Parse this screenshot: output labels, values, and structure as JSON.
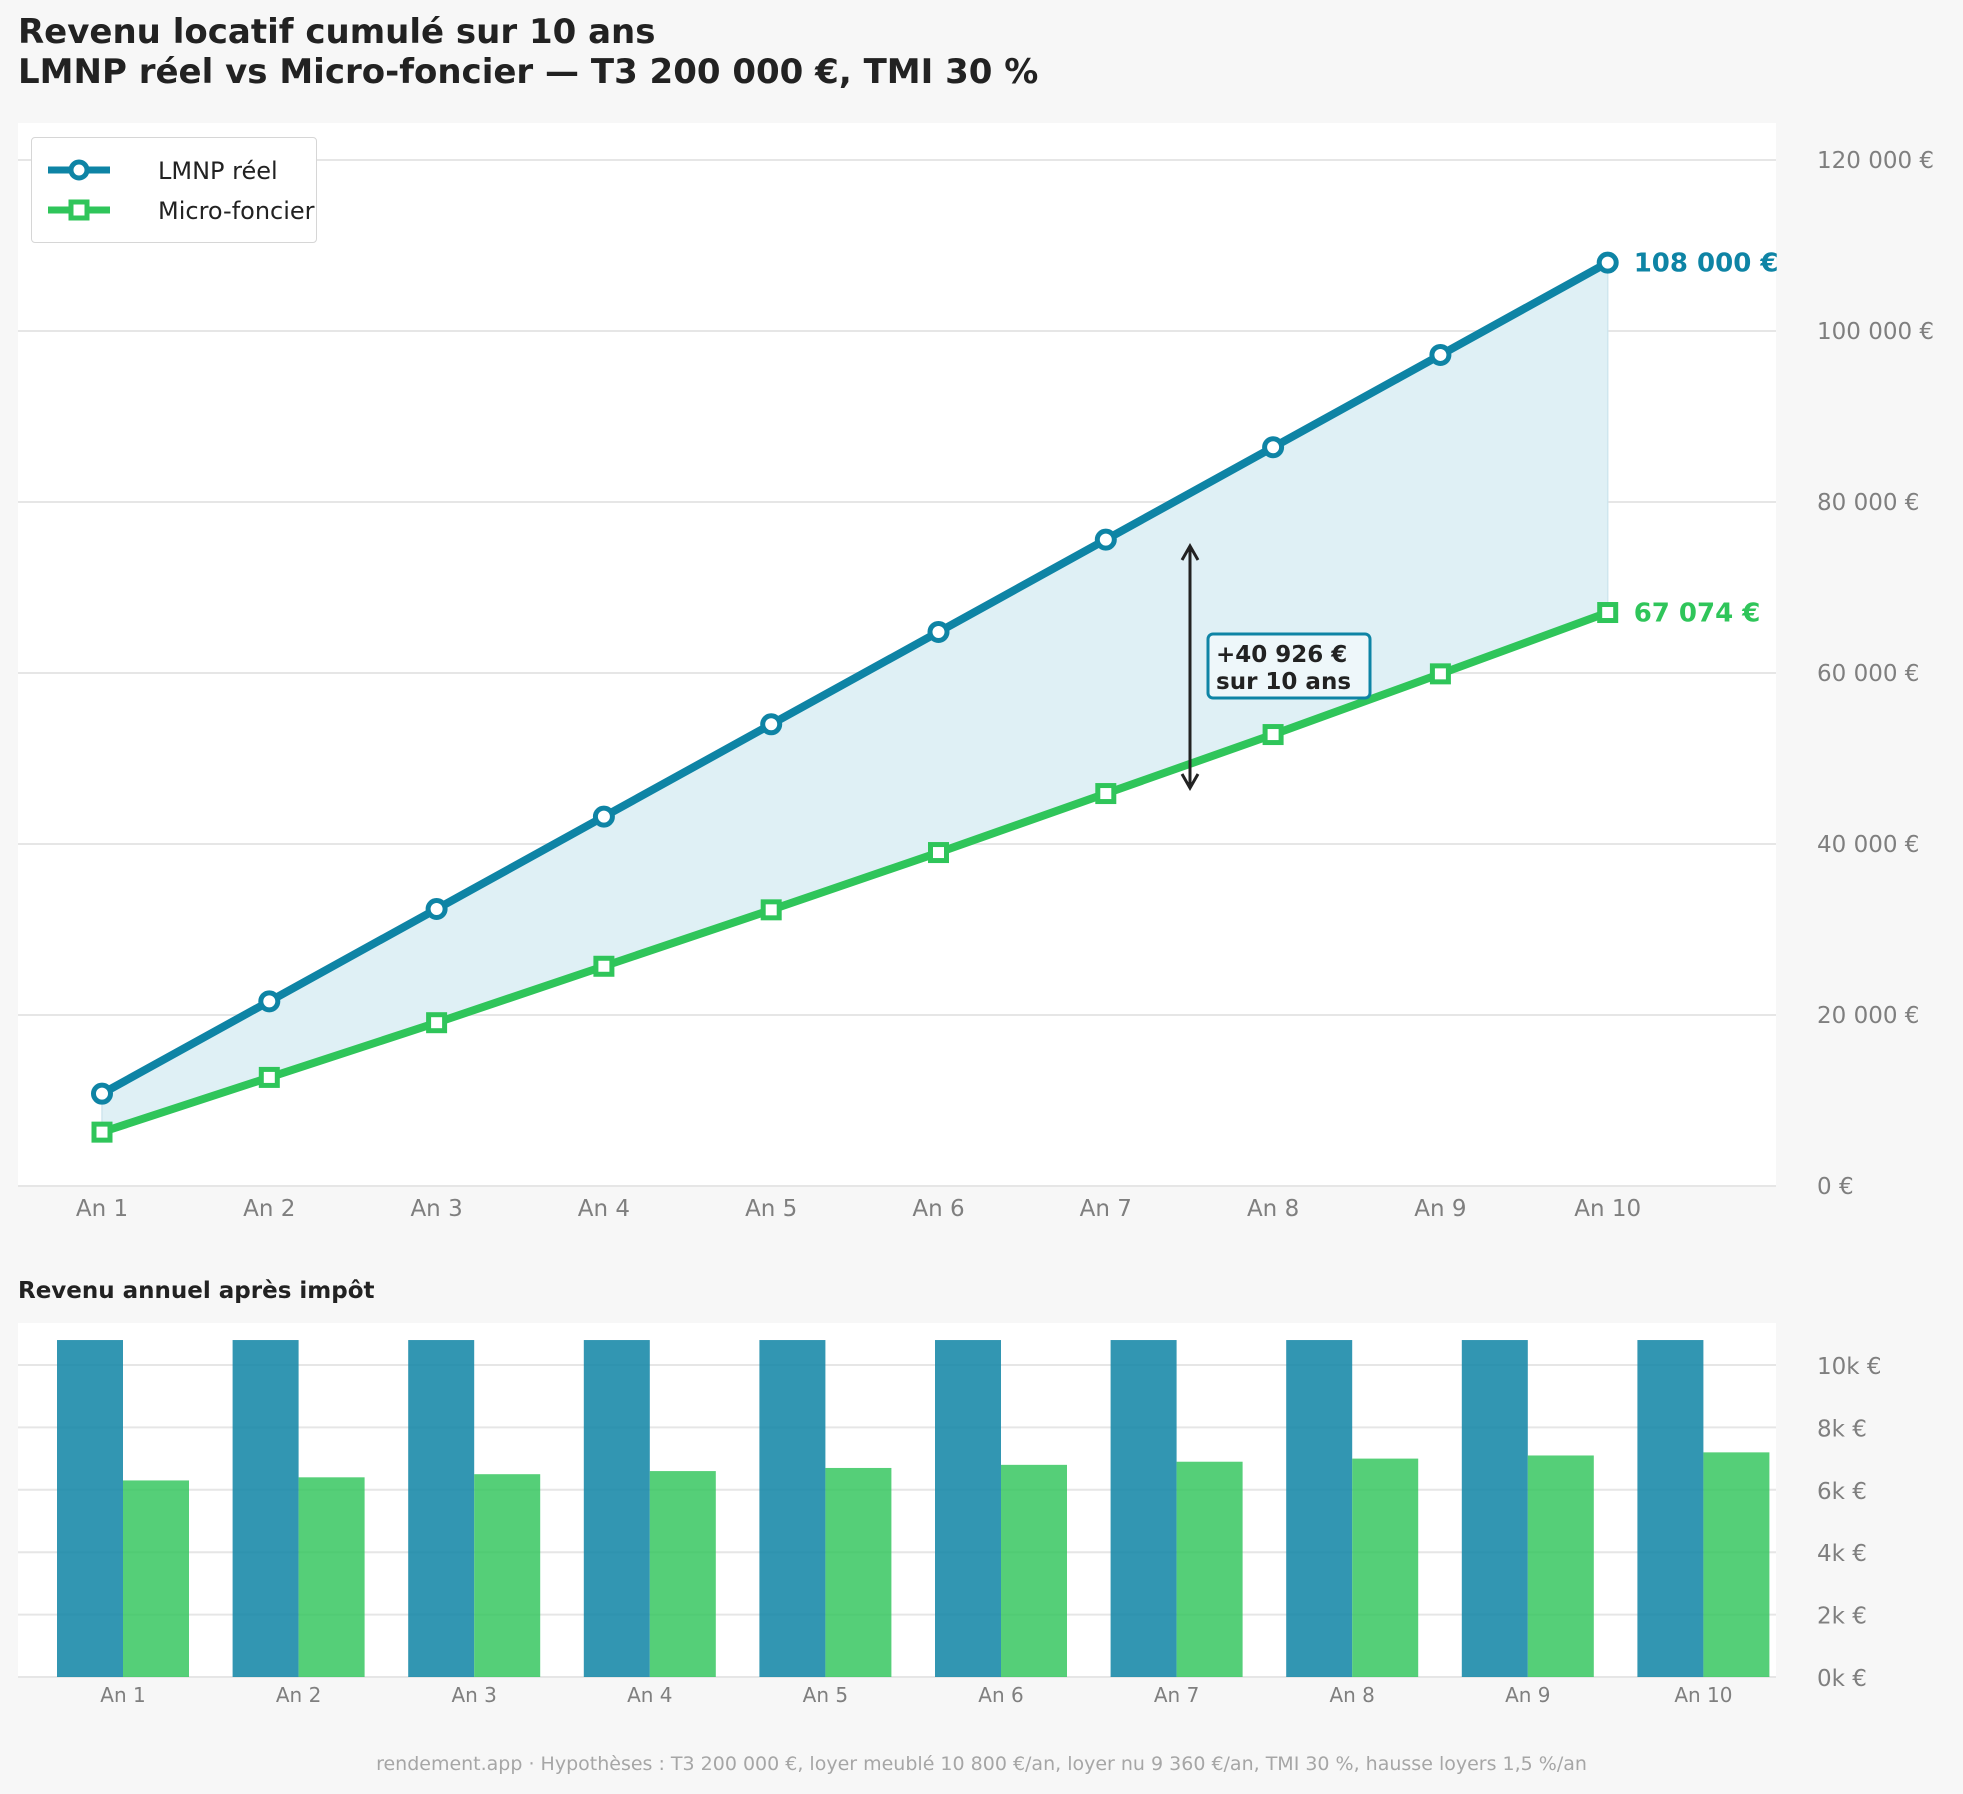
{
  "title_line1": "Revenu locatif cumulé sur 10 ans",
  "title_line2": "LMNP réel vs Micro-foncier — T3 200 000 €, TMI 30 %",
  "subtitle_bars": "Revenu annuel après impôt",
  "footer": "rendement.app · Hypothèses : T3 200 000 €, loyer meublé 10 800 €/an, loyer nu 9 360 €/an, TMI 30 %, hausse loyers 1,5 %/an",
  "colors": {
    "lmnp": "#0e84a5",
    "micro": "#2fc55a",
    "fill": "#dff0f5",
    "grid": "#e6e6e6",
    "tick": "#7f7f7f"
  },
  "chart_data": [
    {
      "type": "line",
      "title": "Revenu locatif cumulé sur 10 ans",
      "categories": [
        "An 1",
        "An 2",
        "An 3",
        "An 4",
        "An 5",
        "An 6",
        "An 7",
        "An 8",
        "An 9",
        "An 10"
      ],
      "series": [
        {
          "name": "LMNP réel",
          "marker": "circle",
          "values": [
            10800,
            21600,
            32400,
            43200,
            54000,
            64800,
            75600,
            86400,
            97200,
            108000
          ]
        },
        {
          "name": "Micro-foncier",
          "marker": "square",
          "values": [
            6300,
            12700,
            19100,
            25700,
            32300,
            39000,
            45900,
            52800,
            59900,
            67074
          ]
        }
      ],
      "end_labels": [
        "108 000 €",
        "67 074 €"
      ],
      "annotation": [
        "+40 926 €",
        "sur 10 ans"
      ],
      "y_ticks": [
        "0 €",
        "20 000 €",
        "40 000 €",
        "60 000 €",
        "80 000 €",
        "100 000 €",
        "120 000 €"
      ],
      "ylim": [
        0,
        125000
      ],
      "y_axis_side": "right",
      "grid": true,
      "legend": "top-left",
      "area_between_series": true
    },
    {
      "type": "bar",
      "title": "Revenu annuel après impôt",
      "categories": [
        "An 1",
        "An 2",
        "An 3",
        "An 4",
        "An 5",
        "An 6",
        "An 7",
        "An 8",
        "An 9",
        "An 10"
      ],
      "series": [
        {
          "name": "LMNP réel",
          "values": [
            10800,
            10800,
            10800,
            10800,
            10800,
            10800,
            10800,
            10800,
            10800,
            10800
          ]
        },
        {
          "name": "Micro-foncier",
          "values": [
            6300,
            6400,
            6500,
            6600,
            6700,
            6800,
            6900,
            7000,
            7100,
            7200
          ]
        }
      ],
      "y_ticks": [
        "0k €",
        "2k €",
        "4k €",
        "6k €",
        "8k €",
        "10k €"
      ],
      "ylim": [
        0,
        11400
      ],
      "y_axis_side": "right",
      "grid": true
    }
  ]
}
